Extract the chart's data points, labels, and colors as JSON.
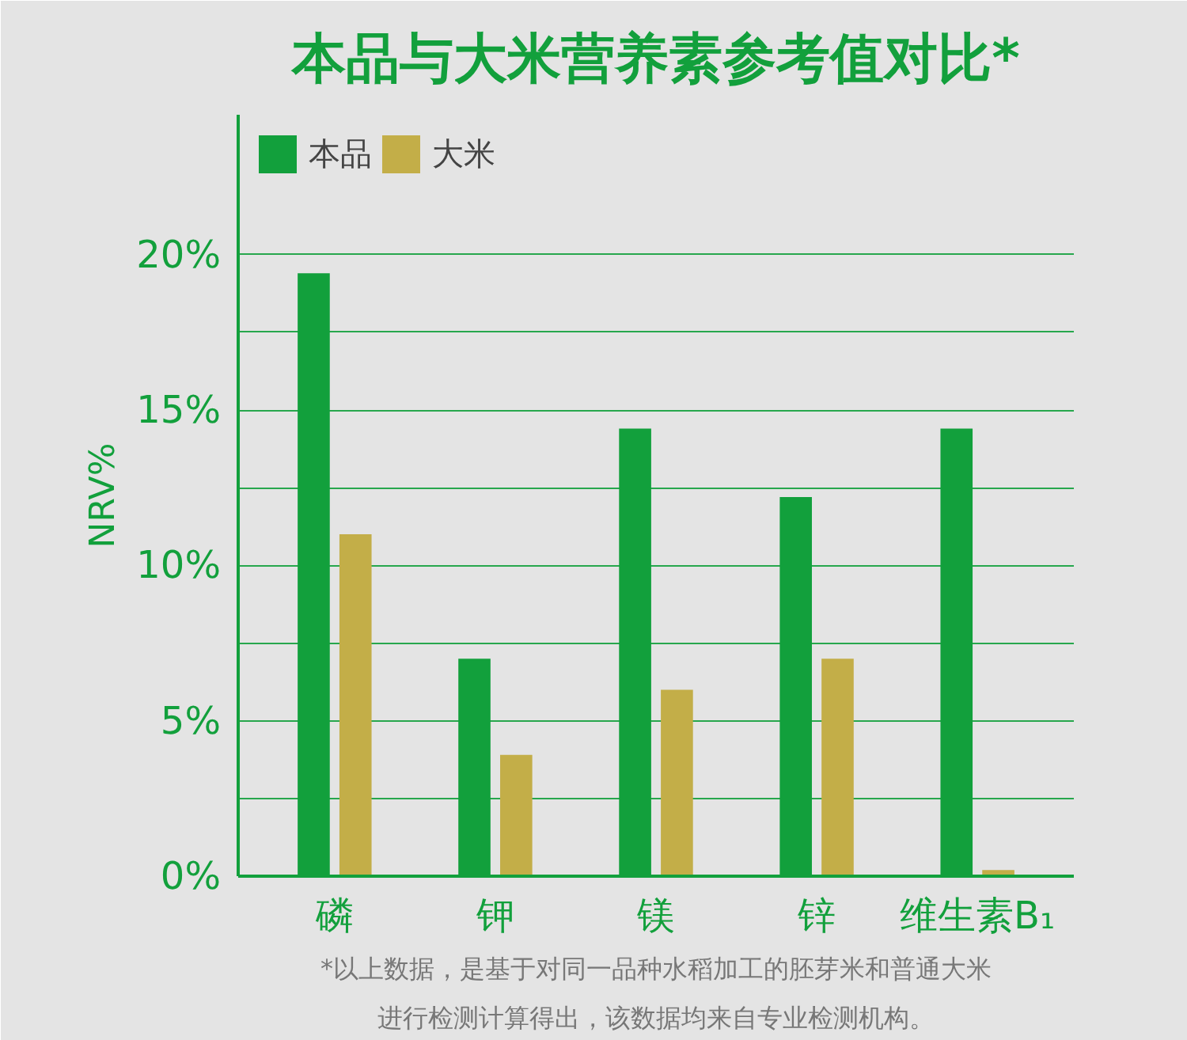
{
  "chart_data": {
    "type": "bar",
    "title": "本品与大米营养素参考值对比*",
    "ylabel": "NRV%",
    "categories": [
      "磷",
      "钾",
      "镁",
      "锌",
      "维生素B₁"
    ],
    "series": [
      {
        "name": "本品",
        "color": "#12a03c",
        "values": [
          19.4,
          7.0,
          14.4,
          12.2,
          14.4
        ]
      },
      {
        "name": "大米",
        "color": "#c3ae48",
        "values": [
          11.0,
          3.9,
          6.0,
          7.0,
          0.2
        ]
      }
    ],
    "ylim": [
      0,
      24.5
    ],
    "yticks": [
      {
        "value": 0,
        "label": "0%"
      },
      {
        "value": 2.5,
        "label": null
      },
      {
        "value": 5,
        "label": "5%"
      },
      {
        "value": 7.5,
        "label": null
      },
      {
        "value": 10,
        "label": "10%"
      },
      {
        "value": 12.5,
        "label": null
      },
      {
        "value": 15,
        "label": "15%"
      },
      {
        "value": 17.5,
        "label": null
      },
      {
        "value": 20,
        "label": "20%"
      }
    ],
    "grid": "y",
    "legend": "top left",
    "annotations": [
      "*以上数据，是基于对同一品种水稻加工的胚芽米和普通大米",
      "进行检测计算得出，该数据均来自专业检测机构。"
    ]
  }
}
